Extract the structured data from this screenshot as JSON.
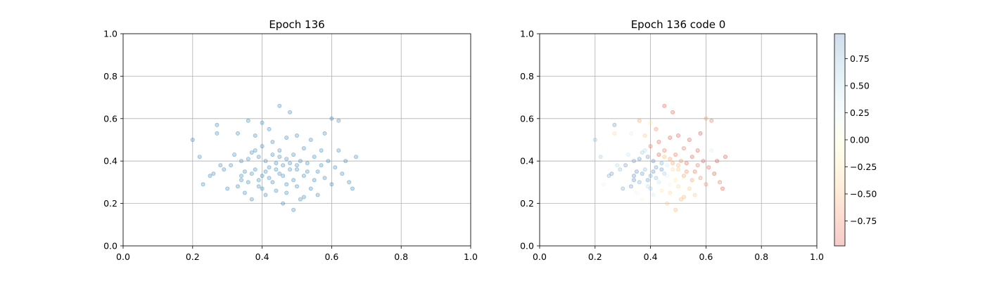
{
  "chart_data": [
    {
      "type": "scatter",
      "title": "Epoch 136",
      "xlabel": "",
      "ylabel": "",
      "xlim": [
        0,
        1
      ],
      "ylim": [
        0,
        1
      ],
      "xticks": [
        "0.0",
        "0.2",
        "0.4",
        "0.6",
        "0.8",
        "1.0"
      ],
      "yticks": [
        "0.0",
        "0.2",
        "0.4",
        "0.6",
        "0.8",
        "1.0"
      ],
      "grid": true,
      "point_color": "#1f77b4",
      "point_alpha": 0.25,
      "points": [
        [
          0.2,
          0.5
        ],
        [
          0.22,
          0.42
        ],
        [
          0.23,
          0.29
        ],
        [
          0.25,
          0.33
        ],
        [
          0.26,
          0.34
        ],
        [
          0.27,
          0.57
        ],
        [
          0.27,
          0.53
        ],
        [
          0.28,
          0.38
        ],
        [
          0.29,
          0.36
        ],
        [
          0.3,
          0.27
        ],
        [
          0.31,
          0.38
        ],
        [
          0.32,
          0.43
        ],
        [
          0.33,
          0.53
        ],
        [
          0.33,
          0.28
        ],
        [
          0.34,
          0.4
        ],
        [
          0.34,
          0.31
        ],
        [
          0.35,
          0.35
        ],
        [
          0.35,
          0.25
        ],
        [
          0.36,
          0.59
        ],
        [
          0.36,
          0.3
        ],
        [
          0.37,
          0.44
        ],
        [
          0.37,
          0.34
        ],
        [
          0.37,
          0.22
        ],
        [
          0.38,
          0.52
        ],
        [
          0.38,
          0.36
        ],
        [
          0.39,
          0.28
        ],
        [
          0.39,
          0.42
        ],
        [
          0.4,
          0.58
        ],
        [
          0.4,
          0.47
        ],
        [
          0.4,
          0.33
        ],
        [
          0.41,
          0.4
        ],
        [
          0.41,
          0.24
        ],
        [
          0.42,
          0.37
        ],
        [
          0.42,
          0.55
        ],
        [
          0.43,
          0.3
        ],
        [
          0.43,
          0.43
        ],
        [
          0.44,
          0.26
        ],
        [
          0.44,
          0.39
        ],
        [
          0.45,
          0.66
        ],
        [
          0.45,
          0.45
        ],
        [
          0.45,
          0.34
        ],
        [
          0.46,
          0.2
        ],
        [
          0.46,
          0.38
        ],
        [
          0.47,
          0.51
        ],
        [
          0.47,
          0.41
        ],
        [
          0.47,
          0.29
        ],
        [
          0.48,
          0.63
        ],
        [
          0.48,
          0.36
        ],
        [
          0.49,
          0.43
        ],
        [
          0.49,
          0.17
        ],
        [
          0.5,
          0.38
        ],
        [
          0.5,
          0.28
        ],
        [
          0.5,
          0.52
        ],
        [
          0.51,
          0.4
        ],
        [
          0.51,
          0.22
        ],
        [
          0.52,
          0.46
        ],
        [
          0.52,
          0.33
        ],
        [
          0.53,
          0.39
        ],
        [
          0.54,
          0.27
        ],
        [
          0.54,
          0.5
        ],
        [
          0.55,
          0.42
        ],
        [
          0.56,
          0.35
        ],
        [
          0.56,
          0.24
        ],
        [
          0.57,
          0.45
        ],
        [
          0.58,
          0.53
        ],
        [
          0.58,
          0.32
        ],
        [
          0.59,
          0.4
        ],
        [
          0.6,
          0.29
        ],
        [
          0.6,
          0.6
        ],
        [
          0.61,
          0.37
        ],
        [
          0.62,
          0.45
        ],
        [
          0.62,
          0.59
        ],
        [
          0.63,
          0.34
        ],
        [
          0.64,
          0.4
        ],
        [
          0.65,
          0.3
        ],
        [
          0.66,
          0.27
        ],
        [
          0.67,
          0.42
        ],
        [
          0.34,
          0.33
        ],
        [
          0.36,
          0.41
        ],
        [
          0.39,
          0.31
        ],
        [
          0.41,
          0.35
        ],
        [
          0.42,
          0.32
        ],
        [
          0.44,
          0.36
        ],
        [
          0.46,
          0.33
        ],
        [
          0.48,
          0.39
        ],
        [
          0.5,
          0.36
        ],
        [
          0.53,
          0.35
        ],
        [
          0.55,
          0.31
        ],
        [
          0.43,
          0.49
        ],
        [
          0.47,
          0.25
        ],
        [
          0.52,
          0.23
        ],
        [
          0.38,
          0.45
        ],
        [
          0.57,
          0.38
        ],
        [
          0.4,
          0.27
        ],
        [
          0.45,
          0.42
        ],
        [
          0.49,
          0.31
        ]
      ]
    },
    {
      "type": "scatter",
      "title": "Epoch 136 code 0",
      "xlabel": "",
      "ylabel": "",
      "xlim": [
        0,
        1
      ],
      "ylim": [
        0,
        1
      ],
      "xticks": [
        "0.0",
        "0.2",
        "0.4",
        "0.6",
        "0.8",
        "1.0"
      ],
      "yticks": [
        "0.0",
        "0.2",
        "0.4",
        "0.6",
        "0.8",
        "1.0"
      ],
      "grid": true,
      "point_alpha": 0.25,
      "colormap": "RdYlBu",
      "colorbar": {
        "range": [
          -0.98,
          0.98
        ],
        "ticks": [
          "0.75",
          "0.50",
          "0.25",
          "0.00",
          "−0.25",
          "−0.50",
          "−0.75"
        ],
        "tick_values": [
          0.75,
          0.5,
          0.25,
          0.0,
          -0.25,
          -0.5,
          -0.75
        ],
        "stops": [
          "#d73027",
          "#f46d43",
          "#fdae61",
          "#fee090",
          "#ffffbf",
          "#e0f3f8",
          "#abd9e9",
          "#74add1",
          "#4575b4"
        ]
      },
      "points": [
        [
          0.2,
          0.5,
          0.7
        ],
        [
          0.22,
          0.42,
          0.6
        ],
        [
          0.23,
          0.29,
          0.2
        ],
        [
          0.25,
          0.33,
          0.8
        ],
        [
          0.26,
          0.34,
          0.9
        ],
        [
          0.27,
          0.57,
          0.9
        ],
        [
          0.27,
          0.53,
          -0.3
        ],
        [
          0.28,
          0.38,
          0.5
        ],
        [
          0.29,
          0.36,
          0.7
        ],
        [
          0.3,
          0.27,
          0.8
        ],
        [
          0.31,
          0.38,
          0.9
        ],
        [
          0.32,
          0.43,
          0.4
        ],
        [
          0.33,
          0.53,
          0.3
        ],
        [
          0.33,
          0.28,
          0.9
        ],
        [
          0.34,
          0.4,
          0.9
        ],
        [
          0.34,
          0.31,
          0.95
        ],
        [
          0.35,
          0.35,
          0.95
        ],
        [
          0.35,
          0.25,
          0.2
        ],
        [
          0.36,
          0.59,
          -0.6
        ],
        [
          0.36,
          0.3,
          0.8
        ],
        [
          0.37,
          0.44,
          0.6
        ],
        [
          0.37,
          0.34,
          0.9
        ],
        [
          0.37,
          0.22,
          0.1
        ],
        [
          0.38,
          0.52,
          -0.4
        ],
        [
          0.38,
          0.36,
          0.7
        ],
        [
          0.39,
          0.28,
          0.5
        ],
        [
          0.39,
          0.42,
          0.9
        ],
        [
          0.4,
          0.58,
          -0.2
        ],
        [
          0.4,
          0.47,
          -0.8
        ],
        [
          0.4,
          0.33,
          0.8
        ],
        [
          0.41,
          0.4,
          0.95
        ],
        [
          0.41,
          0.24,
          0.3
        ],
        [
          0.42,
          0.37,
          0.9
        ],
        [
          0.42,
          0.55,
          -0.7
        ],
        [
          0.43,
          0.3,
          0.4
        ],
        [
          0.43,
          0.43,
          -0.9
        ],
        [
          0.44,
          0.26,
          -0.2
        ],
        [
          0.44,
          0.39,
          0.8
        ],
        [
          0.45,
          0.66,
          -0.9
        ],
        [
          0.45,
          0.45,
          -0.8
        ],
        [
          0.45,
          0.34,
          0.6
        ],
        [
          0.46,
          0.2,
          -0.4
        ],
        [
          0.46,
          0.38,
          0.3
        ],
        [
          0.47,
          0.51,
          -0.9
        ],
        [
          0.47,
          0.41,
          -0.6
        ],
        [
          0.47,
          0.29,
          0.1
        ],
        [
          0.48,
          0.63,
          -0.9
        ],
        [
          0.48,
          0.36,
          -0.3
        ],
        [
          0.49,
          0.43,
          -0.8
        ],
        [
          0.49,
          0.17,
          -0.5
        ],
        [
          0.5,
          0.38,
          -0.5
        ],
        [
          0.5,
          0.28,
          -0.3
        ],
        [
          0.5,
          0.52,
          -0.9
        ],
        [
          0.51,
          0.4,
          -0.7
        ],
        [
          0.51,
          0.22,
          -0.5
        ],
        [
          0.52,
          0.46,
          -0.8
        ],
        [
          0.52,
          0.33,
          -0.6
        ],
        [
          0.53,
          0.39,
          -0.9
        ],
        [
          0.54,
          0.27,
          -0.4
        ],
        [
          0.54,
          0.5,
          -0.9
        ],
        [
          0.55,
          0.42,
          -0.9
        ],
        [
          0.56,
          0.35,
          -0.8
        ],
        [
          0.56,
          0.24,
          -0.4
        ],
        [
          0.57,
          0.45,
          -0.9
        ],
        [
          0.58,
          0.53,
          -0.95
        ],
        [
          0.58,
          0.32,
          -0.7
        ],
        [
          0.59,
          0.4,
          -0.9
        ],
        [
          0.6,
          0.29,
          -0.7
        ],
        [
          0.6,
          0.6,
          -0.6
        ],
        [
          0.61,
          0.37,
          -0.9
        ],
        [
          0.62,
          0.45,
          0.3
        ],
        [
          0.62,
          0.59,
          -0.8
        ],
        [
          0.63,
          0.34,
          -0.9
        ],
        [
          0.64,
          0.4,
          -0.95
        ],
        [
          0.65,
          0.3,
          -0.8
        ],
        [
          0.66,
          0.27,
          -0.9
        ],
        [
          0.67,
          0.42,
          -0.95
        ],
        [
          0.34,
          0.33,
          0.95
        ],
        [
          0.36,
          0.41,
          0.95
        ],
        [
          0.39,
          0.31,
          0.9
        ],
        [
          0.41,
          0.35,
          0.95
        ],
        [
          0.42,
          0.32,
          0.7
        ],
        [
          0.44,
          0.36,
          0.9
        ],
        [
          0.46,
          0.33,
          0.2
        ],
        [
          0.48,
          0.39,
          -0.6
        ],
        [
          0.5,
          0.36,
          -0.4
        ],
        [
          0.53,
          0.35,
          -0.7
        ],
        [
          0.55,
          0.31,
          -0.6
        ],
        [
          0.43,
          0.49,
          -0.85
        ],
        [
          0.47,
          0.25,
          -0.3
        ],
        [
          0.52,
          0.23,
          -0.5
        ],
        [
          0.38,
          0.45,
          0.5
        ],
        [
          0.57,
          0.38,
          -0.8
        ],
        [
          0.4,
          0.27,
          0.6
        ],
        [
          0.45,
          0.42,
          -0.5
        ],
        [
          0.49,
          0.31,
          -0.2
        ]
      ]
    }
  ]
}
